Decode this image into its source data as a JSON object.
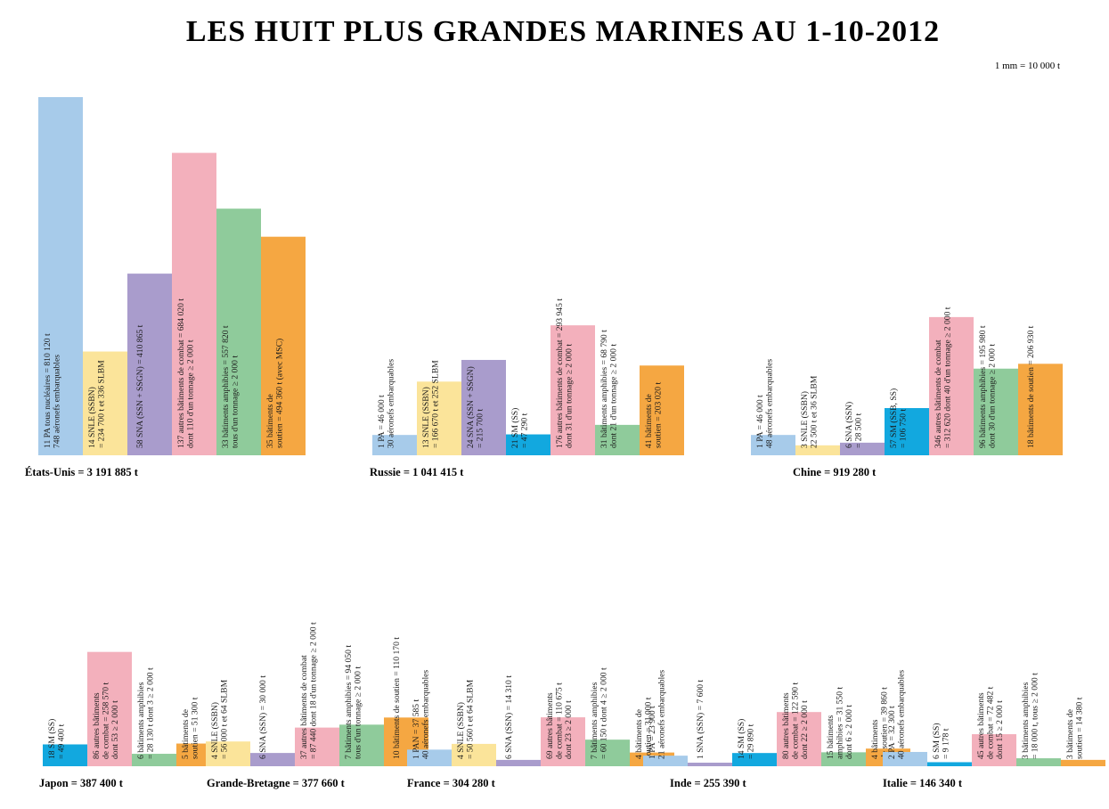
{
  "chart_data": {
    "type": "bar",
    "title": "LES HUIT PLUS GRANDES MARINES AU 1-10-2012",
    "scale_note": "1 mm = 10 000 t",
    "category_colors": {
      "porte-avions": "#a7cbea",
      "snle": "#fbe49a",
      "sna": "#a99ccc",
      "sm": "#12a8df",
      "combat": "#f3b0bc",
      "amphibies": "#8fcb9b",
      "soutien": "#f5a742"
    },
    "countries": [
      {
        "country": "États-Unis = 3 191 885 t",
        "total_t": 3191885,
        "bars": [
          {
            "category": "porte-avions",
            "value_t": 810120,
            "label": [
              "11 PA tous nucléaires = 810 120 t",
              "748 aéronefs embarquables"
            ]
          },
          {
            "category": "snle",
            "value_t": 234700,
            "label": [
              "14 SNLE (SSBN)",
              "= 234 700 t et 336 SLBM"
            ]
          },
          {
            "category": "sna",
            "value_t": 410865,
            "label": [
              "58 SNA (SSN + SSGN) = 410 865 t"
            ]
          },
          {
            "category": "combat",
            "value_t": 684020,
            "label": [
              "137 autres bâtiments de combat = 684 020 t",
              "dont 110 d'un tonnage ≥ 2 000 t"
            ]
          },
          {
            "category": "amphibies",
            "value_t": 557820,
            "label": [
              "33 bâtiments amphibies = 557 820 t",
              "tous d'un tonnage ≥ 2 000 t"
            ]
          },
          {
            "category": "soutien",
            "value_t": 494360,
            "label": [
              "35 bâtiments de",
              "soutien = 494 360 t (avec MSC)"
            ]
          }
        ]
      },
      {
        "country": "Russie = 1 041 415 t",
        "total_t": 1041415,
        "bars": [
          {
            "category": "porte-avions",
            "value_t": 46000,
            "label": [
              "1 PA = 46 000 t",
              "30 aéronefs embarquables"
            ]
          },
          {
            "category": "snle",
            "value_t": 166670,
            "label": [
              "13 SNLE (SSBN)",
              "= 166 670 t et 252 SLBM"
            ]
          },
          {
            "category": "sna",
            "value_t": 215700,
            "label": [
              "24 SNA (SSN + SSGN)",
              "= 215 700 t"
            ]
          },
          {
            "category": "sm",
            "value_t": 47290,
            "label": [
              "21 SM (SS)",
              "= 47 290 t"
            ]
          },
          {
            "category": "combat",
            "value_t": 293945,
            "label": [
              "176 autres bâtiments de combat = 293 945 t",
              "dont 31 d'un tonnage ≥ 2 000 t"
            ]
          },
          {
            "category": "amphibies",
            "value_t": 68790,
            "label": [
              "31 bâtiments amphibies = 68 790 t",
              "dont 21 d'un tonnage ≥ 2 000 t"
            ]
          },
          {
            "category": "soutien",
            "value_t": 203020,
            "label": [
              "41 bâtiments de",
              "soutien = 203 020 t"
            ]
          }
        ]
      },
      {
        "country": "Chine = 919 280 t",
        "total_t": 919280,
        "bars": [
          {
            "category": "porte-avions",
            "value_t": 46000,
            "label": [
              "1 PA = 46 000 t",
              "48 aéronefs embarquables"
            ]
          },
          {
            "category": "snle",
            "value_t": 22500,
            "label": [
              "3 SNLE (SSBN)",
              "22 500 t et 36 SLBM"
            ]
          },
          {
            "category": "sna",
            "value_t": 28500,
            "label": [
              "6 SNA (SSN)",
              "= 28 500 t"
            ]
          },
          {
            "category": "sm",
            "value_t": 106750,
            "label": [
              "57 SM (SSB, SS)",
              "= 106 750 t"
            ]
          },
          {
            "category": "combat",
            "value_t": 312620,
            "label": [
              "346 autres bâtiments de combat",
              "= 312 620 dont 40 d'un tonnage ≥ 2 000 t"
            ]
          },
          {
            "category": "amphibies",
            "value_t": 195980,
            "label": [
              "96 bâtiments amphibies = 195 980 t",
              "dont 30 d'un tonnage ≥ 2 000 t"
            ]
          },
          {
            "category": "soutien",
            "value_t": 206930,
            "label": [
              "18 bâtiments de soutien = 206 930 t"
            ]
          }
        ]
      },
      {
        "country": "Japon = 387 400 t",
        "total_t": 387400,
        "bars": [
          {
            "category": "sm",
            "value_t": 49400,
            "label": [
              "18 SM (SS)",
              "= 49 400 t"
            ]
          },
          {
            "category": "combat",
            "value_t": 258570,
            "label": [
              "86 autres bâtiments",
              "de combat = 258 570 t",
              "dont 53 ≥ 2 000 t"
            ]
          },
          {
            "category": "amphibies",
            "value_t": 28130,
            "label": [
              "6 bâtiments amphibies",
              "= 28 130 t dont 3 ≥ 2 000 t"
            ]
          },
          {
            "category": "soutien",
            "value_t": 51300,
            "label": [
              "5 bâtiments de",
              "soutien = 51 300 t"
            ]
          }
        ]
      },
      {
        "country": "Grande-Bretagne = 377 660 t",
        "total_t": 377660,
        "bars": [
          {
            "category": "snle",
            "value_t": 56000,
            "label": [
              "4 SNLE (SSBN)",
              "= 56 000 t et 64 SLBM"
            ]
          },
          {
            "category": "sna",
            "value_t": 30000,
            "label": [
              "6 SNA (SSN) = 30 000 t"
            ]
          },
          {
            "category": "combat",
            "value_t": 87440,
            "label": [
              "37 autres bâtiments de combat",
              "= 87 440 dont 18 d'un tonnage ≥ 2 000 t"
            ]
          },
          {
            "category": "amphibies",
            "value_t": 94050,
            "label": [
              "7 bâtiments amphibies = 94 050 t",
              "tous d'un tonnage ≥ 2 000 t"
            ]
          },
          {
            "category": "soutien",
            "value_t": 110170,
            "label": [
              "10 bâtiments de soutien = 110 170 t"
            ]
          }
        ]
      },
      {
        "country": "France = 304 280 t",
        "total_t": 304280,
        "bars": [
          {
            "category": "porte-avions",
            "value_t": 37585,
            "label": [
              "1 PAN = 37 585 t",
              "40 aéronefs embarquables"
            ]
          },
          {
            "category": "snle",
            "value_t": 50560,
            "label": [
              "4 SNLE (SSBN)",
              "= 50 560 t et 64 SLBM"
            ]
          },
          {
            "category": "sna",
            "value_t": 14310,
            "label": [
              "6 SNA (SSN) = 14 310 t"
            ]
          },
          {
            "category": "combat",
            "value_t": 110675,
            "label": [
              "69 autres bâtiments",
              "de combat = 110 675 t",
              "dont 23 ≥ 2 000 t"
            ]
          },
          {
            "category": "amphibies",
            "value_t": 60150,
            "label": [
              "7 bâtiments amphibies",
              "= 60 150 t dont 4 ≥ 2 000 t"
            ]
          },
          {
            "category": "soutien",
            "value_t": 31000,
            "label": [
              "4 bâtiments de",
              "soutien = 31 000 t"
            ]
          }
        ]
      },
      {
        "country": "Inde = 255 390 t",
        "total_t": 255390,
        "bars": [
          {
            "category": "porte-avions",
            "value_t": 23900,
            "label": [
              "1 PA = 23 900 t",
              "21 aéronefs embarquables"
            ]
          },
          {
            "category": "sna",
            "value_t": 7600,
            "label": [
              "1 SNA (SSN) = 7 600 t"
            ]
          },
          {
            "category": "sm",
            "value_t": 29890,
            "label": [
              "14 SM (SS)",
              "= 29 890 t"
            ]
          },
          {
            "category": "combat",
            "value_t": 122590,
            "label": [
              "80 autres bâtiments",
              "de combat = 122 590 t",
              "dont 22 ≥ 2 000 t"
            ]
          },
          {
            "category": "amphibies",
            "value_t": 31550,
            "label": [
              "15 bâtiments",
              "amphibies = 31 550 t",
              "dont 6 ≥ 2 000 t"
            ]
          },
          {
            "category": "soutien",
            "value_t": 39860,
            "label": [
              "4 bâtiments",
              "de soutien = 39 860 t"
            ]
          }
        ]
      },
      {
        "country": "Italie = 146 340 t",
        "total_t": 146340,
        "bars": [
          {
            "category": "porte-avions",
            "value_t": 32300,
            "label": [
              "2 PA = 32 300 t",
              "40 aéronefs embarquables"
            ]
          },
          {
            "category": "sm",
            "value_t": 9178,
            "label": [
              "6 SM (SS)",
              "= 9 178 t"
            ]
          },
          {
            "category": "combat",
            "value_t": 72482,
            "label": [
              "45 autres bâtiments",
              "de combat = 72 482 t",
              "dont 15 ≥ 2 000 t"
            ]
          },
          {
            "category": "amphibies",
            "value_t": 18000,
            "label": [
              "3 bâtiments amphibies",
              "= 18 000 t, tous ≥ 2 000 t"
            ]
          },
          {
            "category": "soutien",
            "value_t": 14380,
            "label": [
              "3 bâtiments de",
              "soutien = 14 380 t"
            ]
          }
        ]
      }
    ]
  }
}
